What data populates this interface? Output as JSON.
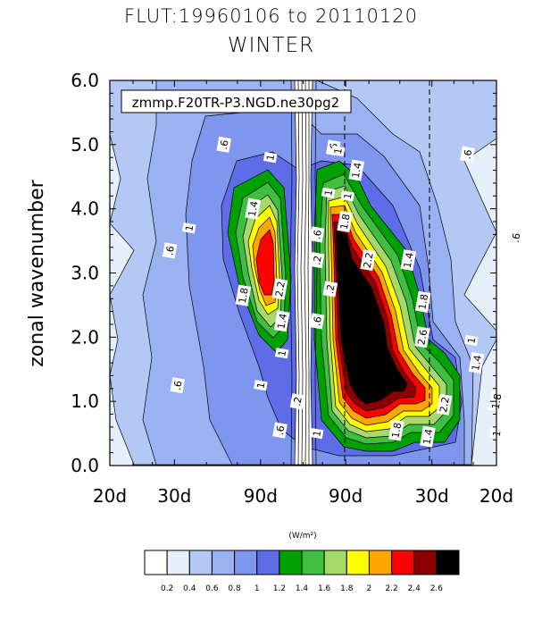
{
  "chart_data": {
    "type": "heatmap",
    "title": "FLUT:19960106 to 20110120",
    "subtitle": "WINTER",
    "ylabel": "zonal wavenumber",
    "xlabel": "",
    "annotation": "zmmp.F20TR-P3.NGD.ne30pg2",
    "ylim": [
      0,
      6
    ],
    "yticks": [
      "0.0",
      "1.0",
      "2.0",
      "3.0",
      "4.0",
      "5.0",
      "6.0"
    ],
    "xtick_labels": [
      "20d",
      "30d",
      "90d",
      "90d",
      "30d",
      "20d"
    ],
    "dashed_periods": [
      "90d",
      "30d"
    ],
    "colorbar": {
      "units": "(W/m²)",
      "levels": [
        "0.2",
        "0.4",
        "0.6",
        "0.8",
        "1",
        "1.2",
        "1.4",
        "1.6",
        "1.8",
        "2",
        "2.2",
        "2.4",
        "2.6"
      ],
      "colors": [
        "#ffffff",
        "#e6f0fb",
        "#b4c8f5",
        "#9ab2f2",
        "#7f96ef",
        "#5e6ce8",
        "#00a000",
        "#3fbf3f",
        "#a6d96a",
        "#ffff00",
        "#ffa500",
        "#ff0000",
        "#8b0000",
        "#000000"
      ]
    },
    "contour_labels": [
      {
        "text": ".6",
        "wn": 5.0,
        "pos": 0.295
      },
      {
        "text": "1",
        "wn": 4.8,
        "pos": 0.415
      },
      {
        "text": "1.4",
        "wn": 4.0,
        "pos": 0.37
      },
      {
        "text": "1",
        "wn": 3.7,
        "pos": 0.205
      },
      {
        "text": ".6",
        "wn": 3.35,
        "pos": 0.155
      },
      {
        "text": "2.2",
        "wn": 2.75,
        "pos": 0.44
      },
      {
        "text": "1.8",
        "wn": 2.65,
        "pos": 0.345
      },
      {
        "text": "1.4",
        "wn": 2.25,
        "pos": 0.445
      },
      {
        "text": "1",
        "wn": 1.75,
        "pos": 0.445
      },
      {
        "text": "1",
        "wn": 1.25,
        "pos": 0.39
      },
      {
        "text": ".6",
        "wn": 1.25,
        "pos": 0.175
      },
      {
        "text": ".6",
        "wn": 3.6,
        "pos": 0.536
      },
      {
        "text": ".2",
        "wn": 3.2,
        "pos": 0.536
      },
      {
        "text": ".2",
        "wn": 2.75,
        "pos": 0.57
      },
      {
        "text": ".6",
        "wn": 2.25,
        "pos": 0.536
      },
      {
        "text": "1",
        "wn": 4.25,
        "pos": 0.565
      },
      {
        "text": ".2",
        "wn": 1.0,
        "pos": 0.485
      },
      {
        "text": ".6",
        "wn": 0.55,
        "pos": 0.44
      },
      {
        "text": "1",
        "wn": 0.5,
        "pos": 0.535
      },
      {
        "text": ".6",
        "wn": 4.95,
        "pos": 0.578
      },
      {
        "text": "1.4",
        "wn": 4.6,
        "pos": 0.638
      },
      {
        "text": "1",
        "wn": 4.2,
        "pos": 0.615
      },
      {
        "text": "1.8",
        "wn": 3.8,
        "pos": 0.608
      },
      {
        "text": "2.2",
        "wn": 3.2,
        "pos": 0.668
      },
      {
        "text": "1.4",
        "wn": 3.2,
        "pos": 0.772
      },
      {
        "text": "1.8",
        "wn": 2.55,
        "pos": 0.81
      },
      {
        "text": "2.6",
        "wn": 2.0,
        "pos": 0.808
      },
      {
        "text": "1.8",
        "wn": 0.55,
        "pos": 0.741
      },
      {
        "text": "1.4",
        "wn": 0.45,
        "pos": 0.822
      },
      {
        "text": "2.2",
        "wn": 0.95,
        "pos": 0.865
      },
      {
        "text": "1",
        "wn": 1.95,
        "pos": 0.935
      },
      {
        "text": "1.4",
        "wn": 1.6,
        "pos": 0.948
      },
      {
        "text": "1.8",
        "wn": 1.0,
        "pos": 1.0
      },
      {
        "text": "1",
        "wn": 0.5,
        "pos": 1.0
      },
      {
        "text": ".6",
        "wn": 4.85,
        "pos": 0.925
      },
      {
        "text": "1",
        "wn": 4.9,
        "pos": 0.59
      },
      {
        "text": ".6",
        "wn": 3.55,
        "pos": 1.05
      }
    ]
  }
}
